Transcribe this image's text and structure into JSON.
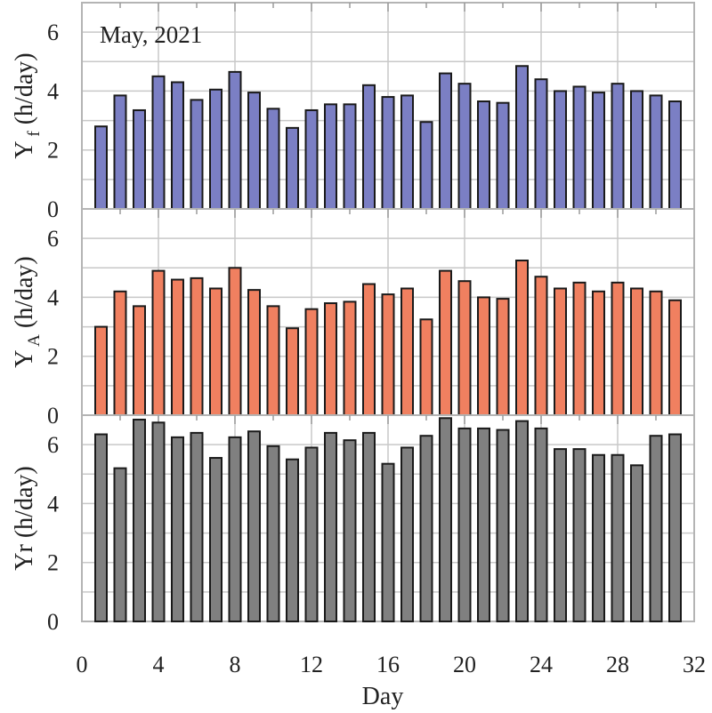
{
  "chart_data": [
    {
      "type": "bar",
      "annotation": "May, 2021",
      "ylabel": {
        "main": "Y",
        "sub": "f",
        "unit": " (h/day)"
      },
      "xlim": [
        0,
        32
      ],
      "ylim": [
        0,
        7
      ],
      "yticks": [
        0,
        2,
        4,
        6
      ],
      "grid": true,
      "color": "#7b7fc4",
      "x": [
        1,
        2,
        3,
        4,
        5,
        6,
        7,
        8,
        9,
        10,
        11,
        12,
        13,
        14,
        15,
        16,
        17,
        18,
        19,
        20,
        21,
        22,
        23,
        24,
        25,
        26,
        27,
        28,
        29,
        30,
        31
      ],
      "values": [
        2.8,
        3.85,
        3.35,
        4.5,
        4.3,
        3.7,
        4.05,
        4.65,
        3.95,
        3.4,
        2.75,
        3.35,
        3.55,
        3.55,
        4.2,
        3.8,
        3.85,
        2.95,
        4.6,
        4.25,
        3.65,
        3.6,
        4.85,
        4.4,
        4.0,
        4.15,
        3.95,
        4.25,
        4.0,
        3.85,
        3.65
      ]
    },
    {
      "type": "bar",
      "ylabel": {
        "main": "Y",
        "sub": "A",
        "unit": " (h/day)"
      },
      "xlim": [
        0,
        32
      ],
      "ylim": [
        0,
        6
      ],
      "yticks": [
        0,
        2,
        4,
        6
      ],
      "grid": true,
      "color": "#f08060",
      "x": [
        1,
        2,
        3,
        4,
        5,
        6,
        7,
        8,
        9,
        10,
        11,
        12,
        13,
        14,
        15,
        16,
        17,
        18,
        19,
        20,
        21,
        22,
        23,
        24,
        25,
        26,
        27,
        28,
        29,
        30,
        31
      ],
      "values": [
        3.0,
        4.2,
        3.7,
        4.9,
        4.6,
        4.65,
        4.3,
        5.0,
        4.25,
        3.7,
        2.95,
        3.6,
        3.8,
        3.85,
        4.45,
        4.1,
        4.3,
        3.25,
        4.9,
        4.55,
        4.0,
        3.95,
        5.25,
        4.7,
        4.3,
        4.5,
        4.2,
        4.5,
        4.3,
        4.2,
        3.9
      ]
    },
    {
      "type": "bar",
      "ylabel": {
        "main": "Yr",
        "sub": "",
        "unit": " (h/day)"
      },
      "xlabel": "Day",
      "xlim": [
        0,
        32
      ],
      "ylim": [
        0,
        7
      ],
      "xticks": [
        0,
        4,
        8,
        12,
        16,
        20,
        24,
        28,
        32
      ],
      "yticks": [
        0,
        2,
        4,
        6
      ],
      "grid": true,
      "color": "#808080",
      "x": [
        1,
        2,
        3,
        4,
        5,
        6,
        7,
        8,
        9,
        10,
        11,
        12,
        13,
        14,
        15,
        16,
        17,
        18,
        19,
        20,
        21,
        22,
        23,
        24,
        25,
        26,
        27,
        28,
        29,
        30,
        31
      ],
      "values": [
        6.35,
        5.2,
        6.85,
        6.75,
        6.25,
        6.4,
        5.55,
        6.25,
        6.45,
        5.95,
        5.5,
        5.9,
        6.4,
        6.15,
        6.4,
        5.35,
        5.9,
        6.3,
        6.9,
        6.55,
        6.55,
        6.5,
        6.8,
        6.55,
        5.85,
        5.85,
        5.65,
        5.65,
        5.3,
        6.3,
        6.35
      ]
    }
  ]
}
